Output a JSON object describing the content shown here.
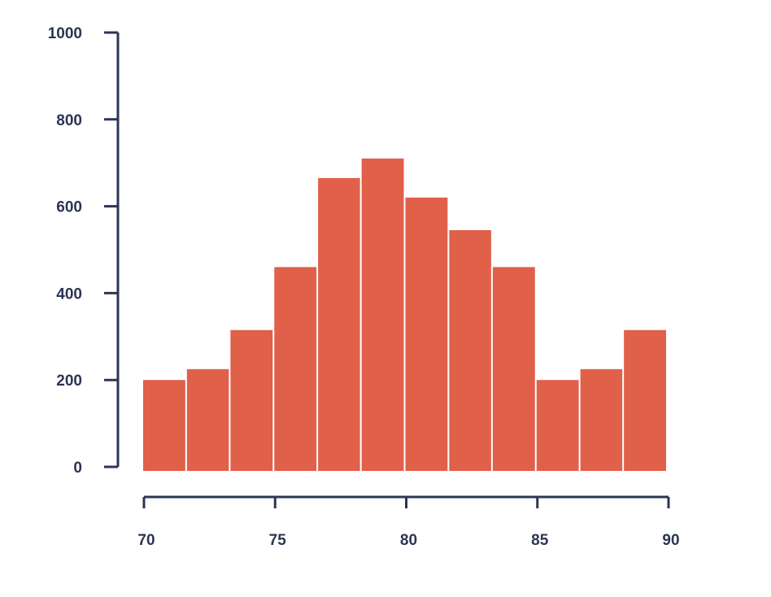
{
  "chart_data": {
    "type": "bar",
    "title": "",
    "xlabel": "",
    "ylabel": "",
    "bin_edges": [
      70,
      71.67,
      73.33,
      75,
      76.67,
      78.33,
      80,
      81.67,
      83.33,
      85,
      86.67,
      88.33,
      90
    ],
    "values": [
      200,
      225,
      315,
      460,
      665,
      710,
      620,
      545,
      460,
      200,
      225,
      315
    ],
    "xlim": [
      70,
      90
    ],
    "ylim": [
      0,
      1000
    ],
    "x_ticks": [
      "70",
      "75",
      "80",
      "85",
      "90"
    ],
    "y_ticks": [
      "0",
      "200",
      "400",
      "600",
      "800",
      "1000"
    ],
    "bar_color": "#e0604a",
    "axis_color": "#2c3652",
    "grid": false,
    "legend": "none"
  }
}
